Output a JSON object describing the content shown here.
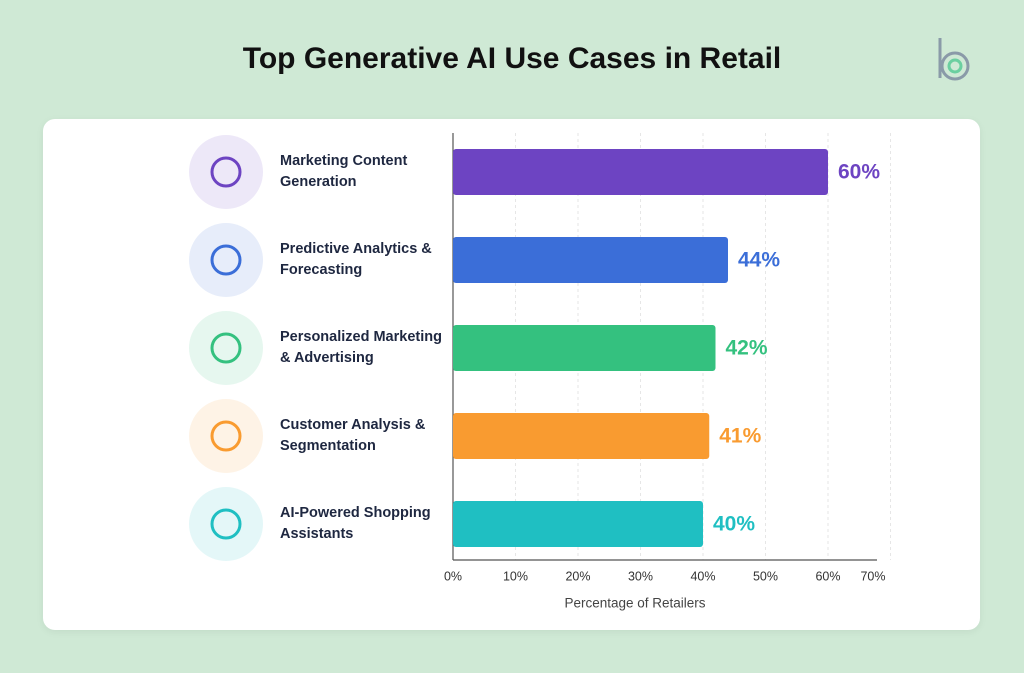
{
  "chart_data": {
    "type": "bar",
    "orientation": "horizontal",
    "title": "Top Generative AI Use Cases in Retail",
    "categories": [
      "Marketing Content Generation",
      "Predictive Analytics & Forecasting",
      "Personalized Marketing & Advertising",
      "Customer Analysis & Segmentation",
      "AI-Powered Shopping Assistants"
    ],
    "values": [
      60,
      44,
      42,
      41,
      40
    ],
    "value_labels": [
      "60%",
      "44%",
      "42%",
      "41%",
      "40%"
    ],
    "colors": [
      "#6d44c2",
      "#3b6ed8",
      "#34c17f",
      "#f99b30",
      "#1fbfc2"
    ],
    "xlabel": "Percentage of Retailers",
    "xlim": [
      0,
      70
    ],
    "xticks": [
      {
        "value": 0,
        "label": "0%"
      },
      {
        "value": 10,
        "label": "10%"
      },
      {
        "value": 20,
        "label": "20%"
      },
      {
        "value": 30,
        "label": "30%"
      },
      {
        "value": 40,
        "label": "40%"
      },
      {
        "value": 50,
        "label": "50%"
      },
      {
        "value": 60,
        "label": "60%"
      },
      {
        "value": 70,
        "label": "70%"
      }
    ],
    "grid": true
  }
}
